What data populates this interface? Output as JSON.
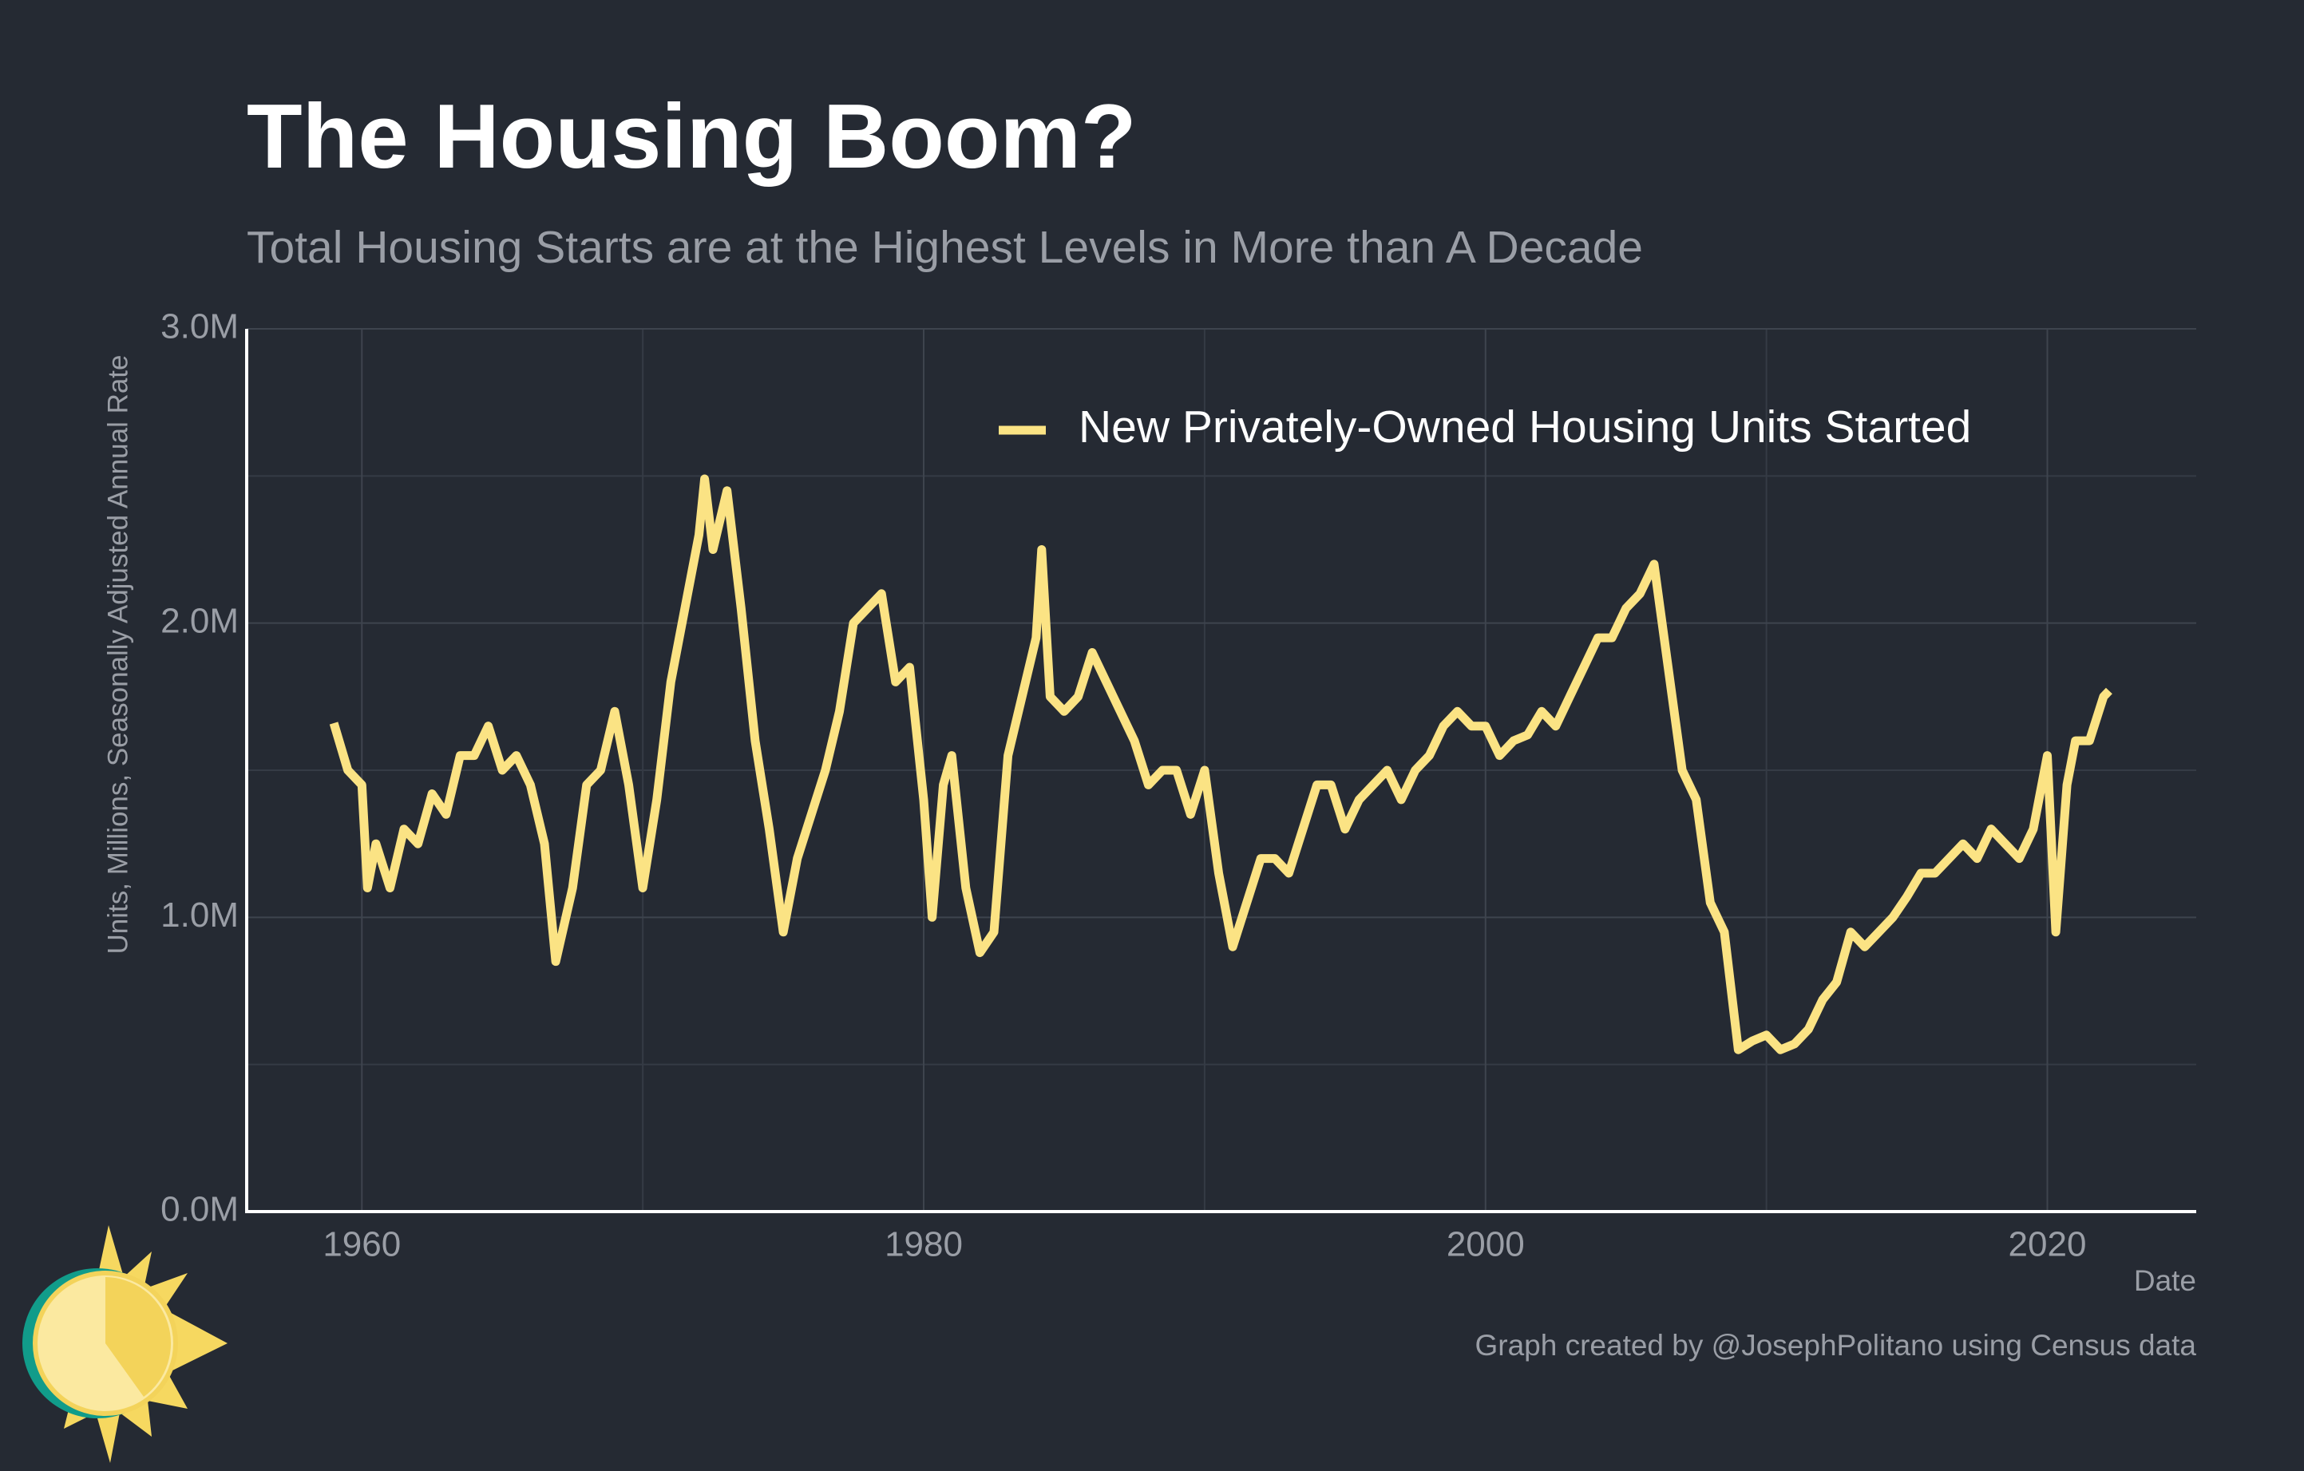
{
  "chart_data": {
    "type": "line",
    "title": "The Housing Boom?",
    "subtitle": "Total Housing Starts are at the Highest Levels in More than A Decade",
    "y_label": "Units, Millions, Seasonally Adjusted Annual Rate",
    "x_label": "Date",
    "caption": "Graph created by @JosephPolitano using Census data",
    "x": [
      1959.0,
      1959.5,
      1960.0,
      1960.2,
      1960.5,
      1961.0,
      1961.5,
      1962.0,
      1962.5,
      1963.0,
      1963.5,
      1964.0,
      1964.5,
      1965.0,
      1965.5,
      1966.0,
      1966.5,
      1966.9,
      1967.5,
      1968.0,
      1968.5,
      1969.0,
      1969.5,
      1970.0,
      1970.5,
      1971.0,
      1971.5,
      1972.0,
      1972.2,
      1972.5,
      1973.0,
      1973.5,
      1974.0,
      1974.5,
      1975.0,
      1975.5,
      1976.0,
      1976.5,
      1977.0,
      1977.5,
      1978.0,
      1978.5,
      1979.0,
      1979.5,
      1980.0,
      1980.3,
      1980.7,
      1981.0,
      1981.5,
      1982.0,
      1982.5,
      1983.0,
      1983.5,
      1984.0,
      1984.2,
      1984.5,
      1985.0,
      1985.5,
      1986.0,
      1986.5,
      1987.0,
      1987.5,
      1988.0,
      1988.5,
      1989.0,
      1989.5,
      1990.0,
      1990.5,
      1991.0,
      1991.5,
      1992.0,
      1992.5,
      1993.0,
      1993.5,
      1994.0,
      1994.5,
      1995.0,
      1995.5,
      1996.0,
      1996.5,
      1997.0,
      1997.5,
      1998.0,
      1998.5,
      1999.0,
      1999.5,
      2000.0,
      2000.5,
      2001.0,
      2001.5,
      2002.0,
      2002.5,
      2003.0,
      2003.5,
      2004.0,
      2004.5,
      2005.0,
      2005.5,
      2006.0,
      2006.5,
      2007.0,
      2007.5,
      2008.0,
      2008.5,
      2009.0,
      2009.5,
      2010.0,
      2010.5,
      2011.0,
      2011.5,
      2012.0,
      2012.5,
      2013.0,
      2013.5,
      2014.0,
      2014.5,
      2015.0,
      2015.5,
      2016.0,
      2016.5,
      2017.0,
      2017.5,
      2018.0,
      2018.5,
      2019.0,
      2019.5,
      2020.0,
      2020.3,
      2020.7,
      2021.0,
      2021.5,
      2022.0,
      2022.2
    ],
    "series": [
      {
        "name": "New Privately-Owned Housing Units Started",
        "color": "#fbe384",
        "values": [
          1.66,
          1.5,
          1.45,
          1.1,
          1.25,
          1.1,
          1.3,
          1.25,
          1.42,
          1.35,
          1.55,
          1.55,
          1.65,
          1.5,
          1.55,
          1.45,
          1.25,
          0.85,
          1.1,
          1.45,
          1.5,
          1.7,
          1.45,
          1.1,
          1.4,
          1.8,
          2.05,
          2.3,
          2.49,
          2.25,
          2.45,
          2.05,
          1.6,
          1.3,
          0.95,
          1.2,
          1.35,
          1.5,
          1.7,
          2.0,
          2.05,
          2.1,
          1.8,
          1.85,
          1.4,
          1.0,
          1.45,
          1.55,
          1.1,
          0.88,
          0.95,
          1.55,
          1.75,
          1.95,
          2.25,
          1.75,
          1.7,
          1.75,
          1.9,
          1.8,
          1.7,
          1.6,
          1.45,
          1.5,
          1.5,
          1.35,
          1.5,
          1.15,
          0.9,
          1.05,
          1.2,
          1.2,
          1.15,
          1.3,
          1.45,
          1.45,
          1.3,
          1.4,
          1.45,
          1.5,
          1.4,
          1.5,
          1.55,
          1.65,
          1.7,
          1.65,
          1.65,
          1.55,
          1.6,
          1.62,
          1.7,
          1.65,
          1.75,
          1.85,
          1.95,
          1.95,
          2.05,
          2.1,
          2.2,
          1.85,
          1.5,
          1.4,
          1.05,
          0.95,
          0.55,
          0.58,
          0.6,
          0.55,
          0.57,
          0.62,
          0.72,
          0.78,
          0.95,
          0.9,
          0.95,
          1.0,
          1.07,
          1.15,
          1.15,
          1.2,
          1.25,
          1.2,
          1.3,
          1.25,
          1.2,
          1.3,
          1.55,
          0.95,
          1.45,
          1.6,
          1.6,
          1.75,
          1.77
        ]
      }
    ],
    "xlim": [
      1955.9,
      2025.3
    ],
    "xticks": [
      1960,
      1980,
      2000,
      2020
    ],
    "xminor": [
      1970,
      1990,
      2010
    ],
    "ylim": [
      0,
      3
    ],
    "yticks": [
      {
        "value": 0,
        "label": "0.0M"
      },
      {
        "value": 1,
        "label": "1.0M"
      },
      {
        "value": 2,
        "label": "2.0M"
      },
      {
        "value": 3,
        "label": "3.0M"
      }
    ],
    "yminor": [
      0.5,
      1.5,
      2.5
    ],
    "grid": true,
    "legend": "top-right"
  }
}
